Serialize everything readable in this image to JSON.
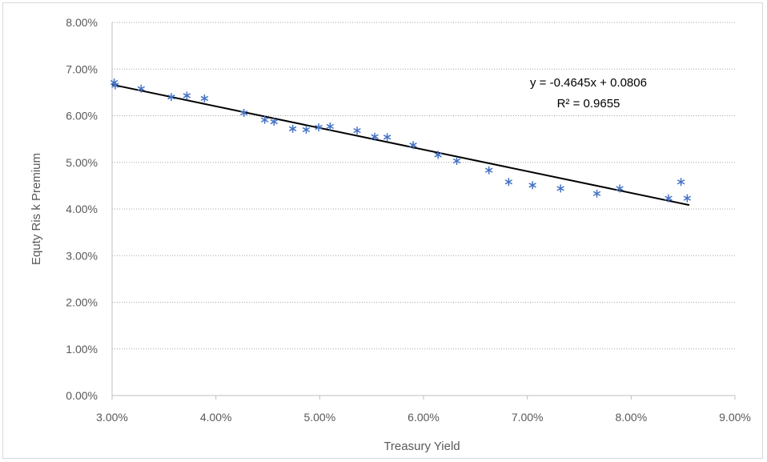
{
  "chart_data": {
    "type": "scatter",
    "xlabel": "Treasury Yield",
    "ylabel": "Equty Ris k Premium",
    "xlim": [
      0.03,
      0.09
    ],
    "ylim": [
      0,
      0.08
    ],
    "x_ticks": [
      0.03,
      0.04,
      0.05,
      0.06,
      0.07,
      0.08,
      0.09
    ],
    "y_ticks": [
      0,
      0.01,
      0.02,
      0.03,
      0.04,
      0.05,
      0.06,
      0.07,
      0.08
    ],
    "x_tick_labels": [
      "3.00%",
      "4.00%",
      "5.00%",
      "6.00%",
      "7.00%",
      "8.00%",
      "9.00%"
    ],
    "y_tick_labels": [
      "0.00%",
      "1.00%",
      "2.00%",
      "3.00%",
      "4.00%",
      "5.00%",
      "6.00%",
      "7.00%",
      "8.00%"
    ],
    "grid": "horizontal-dotted",
    "legend": "none",
    "series": [
      {
        "marker": "asterisk",
        "color": "#4472c4",
        "points": [
          [
            0.0302,
            0.0671
          ],
          [
            0.0303,
            0.0665
          ],
          [
            0.0328,
            0.0658
          ],
          [
            0.0357,
            0.064
          ],
          [
            0.0372,
            0.0643
          ],
          [
            0.0389,
            0.0637
          ],
          [
            0.0427,
            0.0606
          ],
          [
            0.0447,
            0.0591
          ],
          [
            0.0456,
            0.0587
          ],
          [
            0.0474,
            0.0572
          ],
          [
            0.0487,
            0.057
          ],
          [
            0.0499,
            0.0575
          ],
          [
            0.051,
            0.0577
          ],
          [
            0.0536,
            0.0568
          ],
          [
            0.0553,
            0.0555
          ],
          [
            0.0565,
            0.0554
          ],
          [
            0.059,
            0.0537
          ],
          [
            0.0614,
            0.0516
          ],
          [
            0.0632,
            0.0503
          ],
          [
            0.0663,
            0.0483
          ],
          [
            0.0682,
            0.0458
          ],
          [
            0.0705,
            0.0451
          ],
          [
            0.0732,
            0.0444
          ],
          [
            0.0767,
            0.0433
          ],
          [
            0.0789,
            0.0444
          ],
          [
            0.0836,
            0.0423
          ],
          [
            0.0848,
            0.0458
          ],
          [
            0.0854,
            0.0423
          ]
        ]
      }
    ],
    "trendline": {
      "slope": -0.4645,
      "intercept": 0.0806,
      "x_range": [
        0.03,
        0.0856
      ],
      "color": "#000000",
      "equation_label": "y = -0.4645x + 0.0806",
      "r2_label": "R² = 0.9655"
    }
  }
}
